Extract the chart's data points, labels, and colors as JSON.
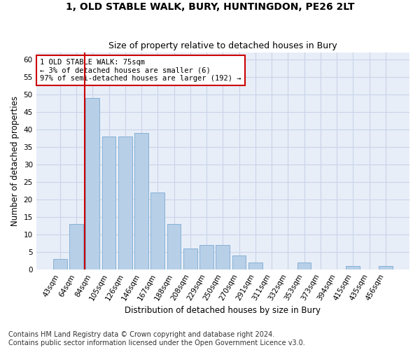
{
  "title": "1, OLD STABLE WALK, BURY, HUNTINGDON, PE26 2LT",
  "subtitle": "Size of property relative to detached houses in Bury",
  "xlabel": "Distribution of detached houses by size in Bury",
  "ylabel": "Number of detached properties",
  "categories": [
    "43sqm",
    "64sqm",
    "84sqm",
    "105sqm",
    "126sqm",
    "146sqm",
    "167sqm",
    "188sqm",
    "208sqm",
    "229sqm",
    "250sqm",
    "270sqm",
    "291sqm",
    "311sqm",
    "332sqm",
    "353sqm",
    "373sqm",
    "394sqm",
    "415sqm",
    "435sqm",
    "456sqm"
  ],
  "values": [
    3,
    13,
    49,
    38,
    38,
    39,
    22,
    13,
    6,
    7,
    7,
    4,
    2,
    0,
    0,
    2,
    0,
    0,
    1,
    0,
    1
  ],
  "bar_color": "#b8cfe8",
  "bar_edge_color": "#7aaad0",
  "vline_color": "#cc0000",
  "annotation_text": "1 OLD STABLE WALK: 75sqm\n← 3% of detached houses are smaller (6)\n97% of semi-detached houses are larger (192) →",
  "annotation_box_color": "#ffffff",
  "annotation_box_edge": "#cc0000",
  "ylim": [
    0,
    62
  ],
  "yticks": [
    0,
    5,
    10,
    15,
    20,
    25,
    30,
    35,
    40,
    45,
    50,
    55,
    60
  ],
  "grid_color": "#c8d4e8",
  "background_color": "#e8eef8",
  "footer": "Contains HM Land Registry data © Crown copyright and database right 2024.\nContains public sector information licensed under the Open Government Licence v3.0.",
  "title_fontsize": 10,
  "subtitle_fontsize": 9,
  "xlabel_fontsize": 8.5,
  "ylabel_fontsize": 8.5,
  "footer_fontsize": 7,
  "tick_fontsize": 7.5,
  "annot_fontsize": 7.5
}
